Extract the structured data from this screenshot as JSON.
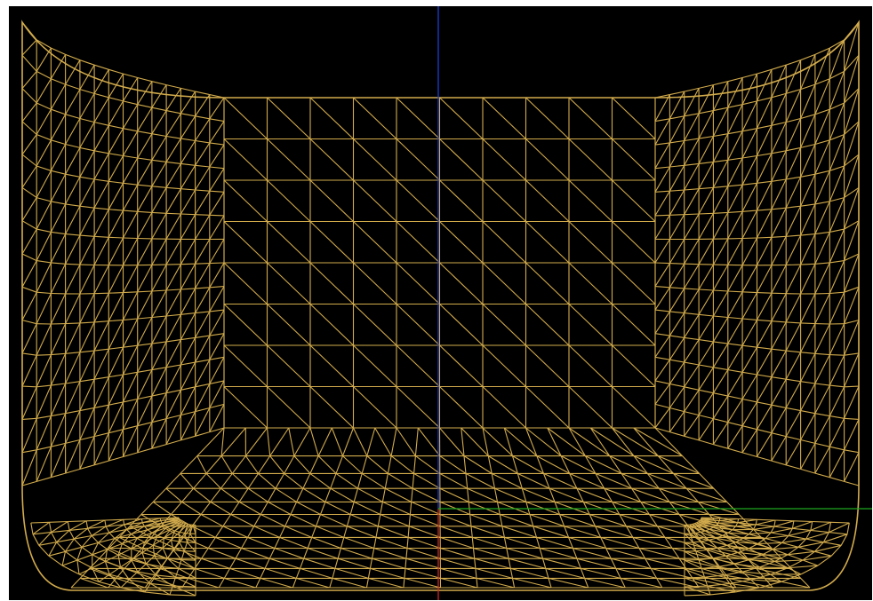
{
  "viewport": {
    "background": "#000000",
    "mesh_color": "#d2ab4c",
    "axis_colors": {
      "x": "#1fa81f",
      "y": "#1a3fd6",
      "z": "#d12626"
    },
    "object": "tub-mesh"
  }
}
